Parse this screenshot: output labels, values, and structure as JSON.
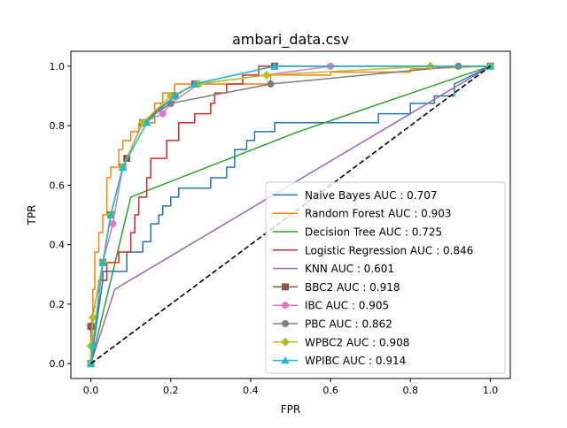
{
  "chart_data": {
    "type": "line",
    "title": "ambari_data.csv",
    "xlabel": "FPR",
    "ylabel": "TPR",
    "xlim": [
      -0.05,
      1.05
    ],
    "ylim": [
      -0.05,
      1.05
    ],
    "x_ticks": [
      0.0,
      0.2,
      0.4,
      0.6,
      0.8,
      1.0
    ],
    "x_tick_labels": [
      "0.0",
      "0.2",
      "0.4",
      "0.6",
      "0.8",
      "1.0"
    ],
    "y_ticks": [
      0.0,
      0.2,
      0.4,
      0.6,
      0.8,
      1.0
    ],
    "y_tick_labels": [
      "0.0",
      "0.2",
      "0.4",
      "0.6",
      "0.8",
      "1.0"
    ],
    "grid": false,
    "legend_position": "lower right",
    "diagonal": {
      "x": [
        0,
        1
      ],
      "y": [
        0,
        1
      ],
      "color": "#000000",
      "style": "dashed"
    },
    "series": [
      {
        "name": "Naive Bayes AUC : 0.707",
        "color": "#1f77b4",
        "marker": "none",
        "x": [
          0,
          0.03,
          0.03,
          0.09,
          0.09,
          0.13,
          0.13,
          0.15,
          0.15,
          0.17,
          0.17,
          0.18,
          0.18,
          0.2,
          0.2,
          0.22,
          0.22,
          0.3,
          0.3,
          0.34,
          0.34,
          0.36,
          0.36,
          0.39,
          0.39,
          0.41,
          0.41,
          0.46,
          0.46,
          0.53,
          0.53,
          0.72,
          0.72,
          0.8,
          0.8,
          0.86,
          0.86,
          0.91,
          0.91,
          1.0
        ],
        "y": [
          0,
          0.28,
          0.31,
          0.31,
          0.375,
          0.375,
          0.41,
          0.41,
          0.47,
          0.47,
          0.5,
          0.5,
          0.53,
          0.53,
          0.56,
          0.56,
          0.59,
          0.59,
          0.625,
          0.625,
          0.66,
          0.66,
          0.72,
          0.72,
          0.75,
          0.75,
          0.78,
          0.78,
          0.81,
          0.81,
          0.81,
          0.81,
          0.84,
          0.84,
          0.875,
          0.875,
          0.9,
          0.9,
          0.94,
          1.0
        ]
      },
      {
        "name": "Random Forest AUC : 0.903",
        "color": "#ff7f0e",
        "marker": "none",
        "x": [
          0,
          0.005,
          0.005,
          0.01,
          0.01,
          0.02,
          0.02,
          0.03,
          0.03,
          0.04,
          0.04,
          0.05,
          0.05,
          0.07,
          0.07,
          0.08,
          0.08,
          0.1,
          0.1,
          0.12,
          0.12,
          0.16,
          0.16,
          0.18,
          0.18,
          0.21,
          0.21,
          0.45,
          0.45,
          0.6,
          0.6,
          0.8,
          0.8,
          1.0
        ],
        "y": [
          0,
          0.125,
          0.25,
          0.25,
          0.375,
          0.375,
          0.44,
          0.44,
          0.5,
          0.5,
          0.625,
          0.625,
          0.66,
          0.66,
          0.72,
          0.72,
          0.75,
          0.75,
          0.78,
          0.78,
          0.81,
          0.81,
          0.875,
          0.875,
          0.91,
          0.91,
          0.94,
          0.94,
          0.97,
          0.97,
          0.98,
          0.98,
          0.99,
          1.0
        ]
      },
      {
        "name": "Decision Tree AUC : 0.725",
        "color": "#2ca02c",
        "marker": "none",
        "x": [
          0,
          0.1,
          0.52,
          1.0
        ],
        "y": [
          0,
          0.56,
          0.78,
          1.0
        ]
      },
      {
        "name": "Logistic Regression AUC : 0.846",
        "color": "#d62728",
        "marker": "none",
        "x": [
          0,
          0.02,
          0.02,
          0.04,
          0.04,
          0.07,
          0.07,
          0.1,
          0.1,
          0.11,
          0.11,
          0.12,
          0.12,
          0.14,
          0.14,
          0.15,
          0.15,
          0.19,
          0.19,
          0.22,
          0.22,
          0.26,
          0.26,
          0.3,
          0.3,
          0.31,
          0.31,
          0.34,
          0.34,
          0.38,
          0.38,
          0.42,
          0.42,
          1.0
        ],
        "y": [
          0,
          0.22,
          0.28,
          0.28,
          0.34,
          0.34,
          0.375,
          0.375,
          0.44,
          0.44,
          0.5,
          0.5,
          0.56,
          0.56,
          0.625,
          0.625,
          0.69,
          0.69,
          0.75,
          0.75,
          0.81,
          0.81,
          0.84,
          0.84,
          0.875,
          0.875,
          0.91,
          0.91,
          0.94,
          0.94,
          0.97,
          0.97,
          1.0,
          1.0
        ]
      },
      {
        "name": "KNN AUC : 0.601",
        "color": "#9467bd",
        "marker": "none",
        "x": [
          0,
          0.06,
          1.0
        ],
        "y": [
          0,
          0.25,
          1.0
        ]
      },
      {
        "name": "BBC2 AUC : 0.918",
        "color": "#8c564b",
        "marker": "square",
        "x": [
          0,
          0.0,
          0.03,
          0.05,
          0.08,
          0.09,
          0.13,
          0.21,
          0.26,
          0.46,
          1.0
        ],
        "y": [
          0,
          0.125,
          0.34,
          0.5,
          0.66,
          0.69,
          0.81,
          0.9,
          0.94,
          1.0,
          1.0
        ]
      },
      {
        "name": "IBC AUC : 0.905",
        "color": "#e377c2",
        "marker": "circle",
        "x": [
          0,
          0.005,
          0.03,
          0.055,
          0.08,
          0.13,
          0.18,
          0.2,
          0.27,
          0.6,
          1.0
        ],
        "y": [
          0,
          0.06,
          0.34,
          0.47,
          0.66,
          0.81,
          0.84,
          0.875,
          0.94,
          1.0,
          1.0
        ]
      },
      {
        "name": "PBC AUC : 0.862",
        "color": "#7f7f7f",
        "marker": "circle",
        "x": [
          0,
          0.005,
          0.03,
          0.05,
          0.08,
          0.13,
          0.2,
          0.45,
          0.92,
          1.0
        ],
        "y": [
          0,
          0.06,
          0.34,
          0.5,
          0.66,
          0.81,
          0.875,
          0.94,
          1.0,
          1.0
        ]
      },
      {
        "name": "WPBC2 AUC : 0.908",
        "color": "#bcbd22",
        "marker": "diamond",
        "x": [
          0,
          0.0,
          0.005,
          0.03,
          0.05,
          0.08,
          0.13,
          0.2,
          0.27,
          0.44,
          0.85,
          1.0
        ],
        "y": [
          0,
          0.06,
          0.155,
          0.34,
          0.5,
          0.66,
          0.81,
          0.9,
          0.94,
          0.97,
          1.0,
          1.0
        ]
      },
      {
        "name": "WPIBC AUC : 0.914",
        "color": "#17becf",
        "marker": "triangle",
        "x": [
          0,
          0.005,
          0.03,
          0.05,
          0.08,
          0.14,
          0.21,
          0.26,
          0.46,
          1.0
        ],
        "y": [
          0,
          0.06,
          0.34,
          0.5,
          0.66,
          0.81,
          0.9,
          0.94,
          1.0,
          1.0
        ]
      }
    ]
  }
}
